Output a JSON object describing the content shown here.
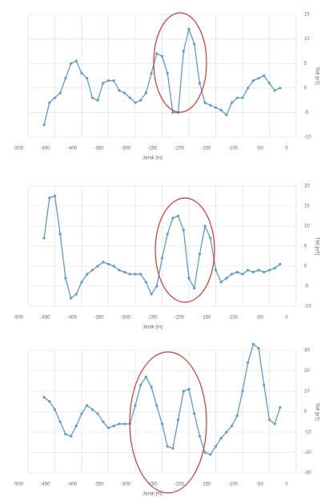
{
  "chart_data": [
    {
      "type": "line",
      "x_label": "Jarak [m]",
      "y_label": "TMI [nT]",
      "color": "#5b9bd5",
      "grid": true,
      "x": [
        -470,
        -460,
        -450,
        -440,
        -430,
        -420,
        -410,
        -400,
        -390,
        -380,
        -370,
        -360,
        -350,
        -340,
        -330,
        -320,
        -310,
        -300,
        -290,
        -280,
        -270,
        -260,
        -250,
        -240,
        -230,
        -220,
        -210,
        -200,
        -190,
        -180,
        -170,
        -160,
        -150,
        -140,
        -130,
        -120,
        -110,
        -100,
        -90,
        -80,
        -70,
        -60,
        -50,
        -40,
        -30
      ],
      "values": [
        -7.5,
        -3,
        -2,
        -1,
        2,
        5,
        5.5,
        3,
        2,
        -2,
        -2.5,
        1,
        1.5,
        1.5,
        -0.5,
        -1,
        -2,
        -3,
        -2.5,
        -1,
        3,
        7,
        6.5,
        3,
        -5,
        -5,
        7.5,
        12,
        9,
        1,
        -3,
        -3.5,
        -4,
        -4.5,
        -5.5,
        -3,
        -2,
        -2,
        0,
        1.5,
        2,
        2.5,
        1,
        -0.5,
        0
      ],
      "xlim": [
        -500,
        0
      ],
      "xticks": [
        -500,
        -450,
        -400,
        -350,
        -300,
        -250,
        -200,
        -150,
        -100,
        -50,
        0
      ],
      "ylim": [
        -10,
        15
      ],
      "yticks": [
        -10,
        -5,
        0,
        5,
        10,
        15
      ]
    },
    {
      "type": "line",
      "x_label": "Jarak [m]",
      "y_label": "TMI [nT]",
      "color": "#5b9bd5",
      "grid": true,
      "x": [
        -470,
        -460,
        -450,
        -440,
        -430,
        -420,
        -410,
        -400,
        -390,
        -380,
        -370,
        -360,
        -350,
        -340,
        -330,
        -320,
        -310,
        -300,
        -290,
        -280,
        -270,
        -260,
        -250,
        -240,
        -230,
        -220,
        -210,
        -200,
        -190,
        -180,
        -170,
        -160,
        -150,
        -140,
        -130,
        -120,
        -110,
        -100,
        -90,
        -80,
        -70,
        -60,
        -50,
        -40,
        -30
      ],
      "values": [
        7,
        17,
        17.5,
        8,
        -3,
        -8,
        -7,
        -4,
        -2,
        -1,
        0,
        1,
        0.5,
        0,
        -1,
        -1.5,
        -2,
        -2,
        -2,
        -4,
        -7,
        -5,
        2,
        8,
        12,
        12.5,
        9,
        -3,
        -5.5,
        3,
        10,
        7,
        -1,
        -4,
        -3,
        -2,
        -1.5,
        -2,
        -1,
        -1.5,
        -1,
        -1.5,
        -1,
        -0.5,
        0.5
      ],
      "xlim": [
        -500,
        0
      ],
      "xticks": [
        -500,
        -450,
        -400,
        -350,
        -300,
        -250,
        -200,
        -150,
        -100,
        -50,
        0
      ],
      "ylim": [
        -10,
        20
      ],
      "yticks": [
        -10,
        -5,
        0,
        5,
        10,
        15,
        20
      ]
    },
    {
      "type": "line",
      "x_label": "Jarak [m]",
      "y_label": "TMI [nT]",
      "color": "#5b9bd5",
      "grid": true,
      "x": [
        -470,
        -460,
        -450,
        -440,
        -430,
        -420,
        -410,
        -400,
        -390,
        -380,
        -370,
        -360,
        -350,
        -340,
        -330,
        -320,
        -310,
        -300,
        -290,
        -280,
        -270,
        -260,
        -250,
        -240,
        -230,
        -220,
        -210,
        -200,
        -190,
        -180,
        -170,
        -160,
        -150,
        -140,
        -130,
        -120,
        -110,
        -100,
        -90,
        -80,
        -70,
        -60,
        -50,
        -40,
        -30
      ],
      "values": [
        7,
        5,
        1,
        -5,
        -11,
        -12,
        -7,
        -1,
        3,
        1,
        -1,
        -5,
        -8,
        -7,
        -6,
        -6,
        -6,
        3,
        13,
        17,
        12,
        3,
        -6,
        -17,
        -18,
        -4,
        10,
        11,
        -1,
        -12,
        -20,
        -21,
        -17,
        -13,
        -10,
        -7,
        -2,
        10,
        24,
        33,
        31,
        13,
        -4,
        -6,
        2
      ],
      "xlim": [
        -500,
        0
      ],
      "xticks": [
        -500,
        -450,
        -400,
        -350,
        -300,
        -250,
        -200,
        -150,
        -100,
        -50,
        0
      ],
      "ylim": [
        -30,
        30
      ],
      "yticks": [
        -30,
        -20,
        -10,
        0,
        10,
        20,
        30
      ]
    }
  ]
}
